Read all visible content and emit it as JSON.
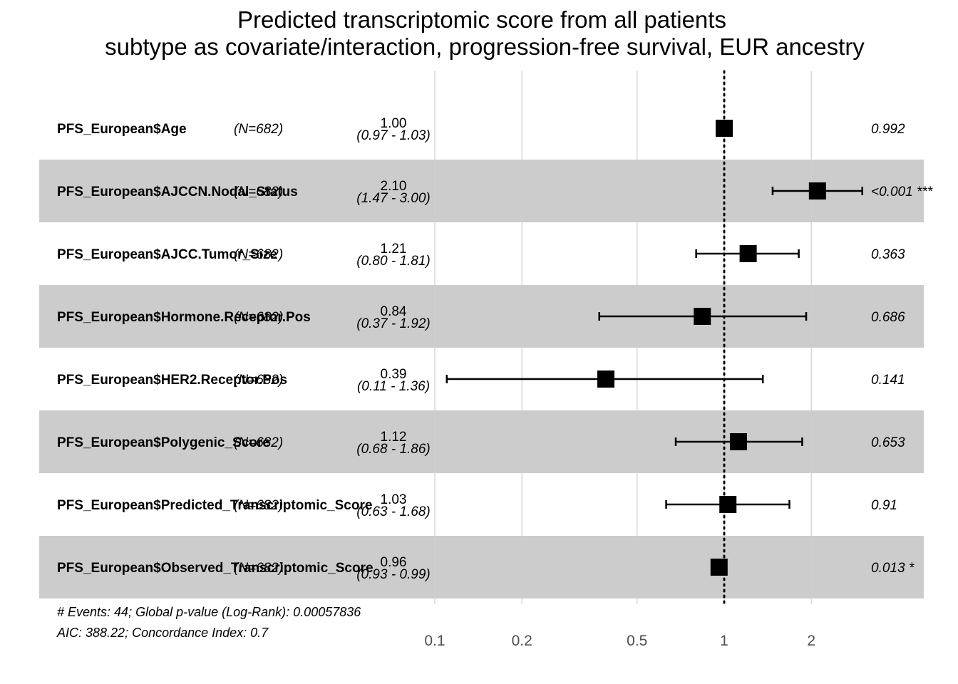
{
  "chart_data": {
    "type": "forest",
    "title_lines": [
      "Predicted transcriptomic score from all patients",
      "subtype as covariate/interaction, progression-free survival, EUR ancestry"
    ],
    "x_scale": "log",
    "x_ticks": [
      0.1,
      0.2,
      0.5,
      1,
      2
    ],
    "x_tick_labels": [
      "0.1",
      "0.2",
      "0.5",
      "1",
      "2"
    ],
    "reference_line": 1,
    "rows": [
      {
        "variable": "PFS_European$Age",
        "n": "(N=682)",
        "hr": 1.0,
        "lo": 0.97,
        "hi": 1.03,
        "hr_label": "1.00",
        "ci_label": "(0.97 - 1.03)",
        "p_label": "0.992"
      },
      {
        "variable": "PFS_European$AJCCN.Nodal_Status",
        "n": "(N=682)",
        "hr": 2.1,
        "lo": 1.47,
        "hi": 3.0,
        "hr_label": "2.10",
        "ci_label": "(1.47 - 3.00)",
        "p_label": "<0.001 ***"
      },
      {
        "variable": "PFS_European$AJCC.Tumor_Size",
        "n": "(N=682)",
        "hr": 1.21,
        "lo": 0.8,
        "hi": 1.81,
        "hr_label": "1.21",
        "ci_label": "(0.80 - 1.81)",
        "p_label": "0.363"
      },
      {
        "variable": "PFS_European$Hormone.Receptor.Pos",
        "n": "(N=682)",
        "hr": 0.84,
        "lo": 0.37,
        "hi": 1.92,
        "hr_label": "0.84",
        "ci_label": "(0.37 - 1.92)",
        "p_label": "0.686"
      },
      {
        "variable": "PFS_European$HER2.Receptor.Pos",
        "n": "(N=682)",
        "hr": 0.39,
        "lo": 0.11,
        "hi": 1.36,
        "hr_label": "0.39",
        "ci_label": "(0.11 - 1.36)",
        "p_label": "0.141"
      },
      {
        "variable": "PFS_European$Polygenic_Score",
        "n": "(N=682)",
        "hr": 1.12,
        "lo": 0.68,
        "hi": 1.86,
        "hr_label": "1.12",
        "ci_label": "(0.68 - 1.86)",
        "p_label": "0.653"
      },
      {
        "variable": "PFS_European$Predicted_Transcriptomic_Score",
        "n": "(N=682)",
        "hr": 1.03,
        "lo": 0.63,
        "hi": 1.68,
        "hr_label": "1.03",
        "ci_label": "(0.63 - 1.68)",
        "p_label": "0.91"
      },
      {
        "variable": "PFS_European$Observed_Transcriptomic_Score",
        "n": "(N=682)",
        "hr": 0.96,
        "lo": 0.93,
        "hi": 0.99,
        "hr_label": "0.96",
        "ci_label": "(0.93 - 0.99)",
        "p_label": "0.013 *"
      }
    ],
    "footer": [
      "# Events: 44; Global p-value (Log-Rank): 0.00057836",
      "AIC: 388.22; Concordance Index: 0.7"
    ],
    "colors": {
      "stripe": "#cccccc",
      "marker": "#000000",
      "gridline": "#cfcfcf"
    }
  }
}
